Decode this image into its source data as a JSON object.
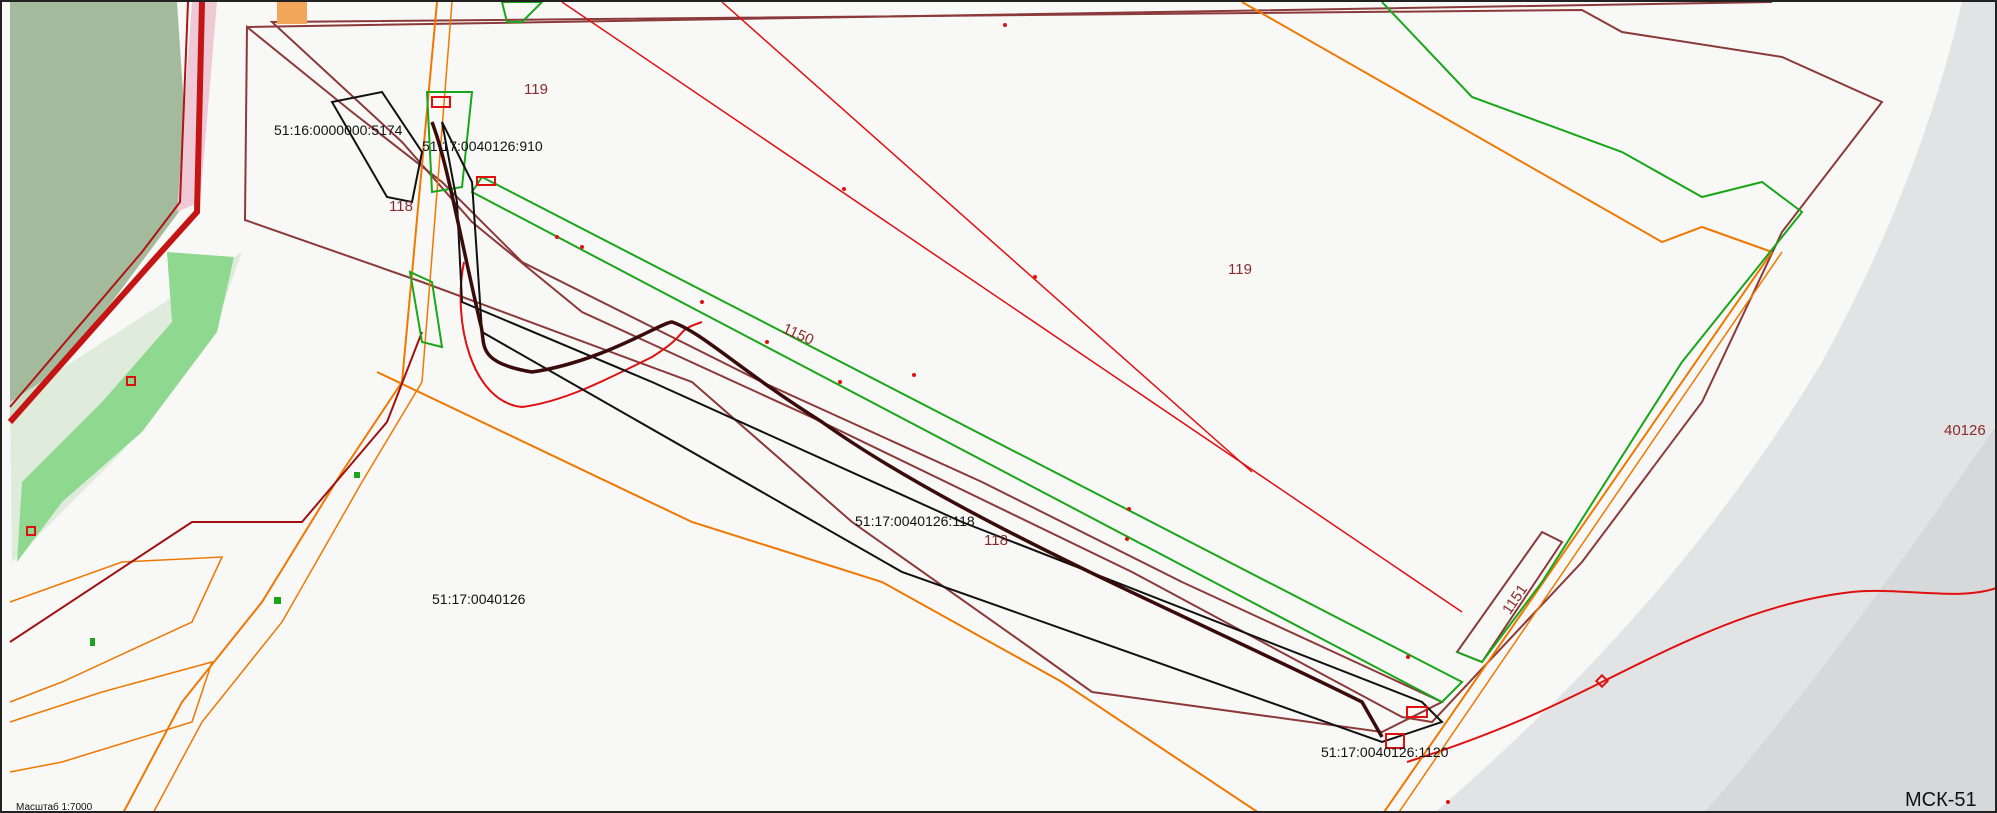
{
  "map": {
    "parcel_labels": [
      {
        "id": "p-5174",
        "text": "51:16:0000000:5174"
      },
      {
        "id": "p-910",
        "text": "51:17:0040126:910"
      },
      {
        "id": "p-118",
        "text": "51:17:0040126:118"
      },
      {
        "id": "p-quarter",
        "text": "51:17:0040126"
      },
      {
        "id": "p-1120",
        "text": "51:17:0040126:1120"
      }
    ],
    "zone_labels": [
      {
        "id": "z-119-top",
        "text": "119"
      },
      {
        "id": "z-118-left",
        "text": "118"
      },
      {
        "id": "z-1150",
        "text": "1150"
      },
      {
        "id": "z-119-mid",
        "text": "119"
      },
      {
        "id": "z-118-mid",
        "text": "118"
      },
      {
        "id": "z-1151",
        "text": "1151"
      },
      {
        "id": "z-40126",
        "text": "40126"
      }
    ],
    "coordinate_system": "МСК-51",
    "scale": "Масштаб 1:7000",
    "colors": {
      "boundary_maroon": "#8b3a3a",
      "red": "#e01010",
      "orange": "#f07800",
      "green": "#19a619",
      "black": "#111111",
      "dark_red": "#b01414",
      "forest": "#9fb998",
      "meadow": "#8fd88f"
    }
  }
}
